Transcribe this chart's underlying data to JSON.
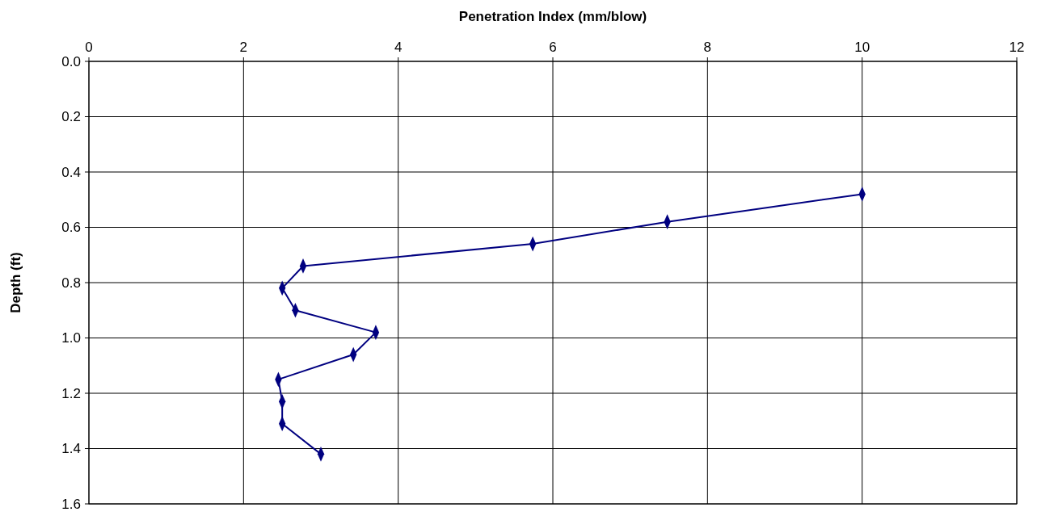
{
  "chart_data": {
    "type": "line",
    "xlabel": "Penetration Index (mm/blow)",
    "ylabel": "Depth (ft)",
    "x": [
      10,
      7.48,
      5.74,
      2.77,
      2.5,
      2.67,
      3.71,
      3.42,
      2.45,
      2.5,
      2.5,
      3.0
    ],
    "series": [
      {
        "color": "#000080",
        "values": [
          0.48,
          0.58,
          0.66,
          0.74,
          0.82,
          0.9,
          0.98,
          1.06,
          1.15,
          1.23,
          1.31,
          1.42
        ]
      }
    ],
    "xlim": [
      0,
      12
    ],
    "xticks": [
      0,
      2,
      4,
      6,
      8,
      10,
      12
    ],
    "ylim": [
      1.6,
      0
    ],
    "yticks": [
      {
        "value": 0,
        "label": "0.0"
      },
      {
        "value": 0.2,
        "label": "0.2"
      },
      {
        "value": 0.4,
        "label": "0.4"
      },
      {
        "value": 0.6,
        "label": "0.6"
      },
      {
        "value": 0.8,
        "label": "0.8"
      },
      {
        "value": 1,
        "label": "1.0"
      },
      {
        "value": 1.2,
        "label": "1.2"
      },
      {
        "value": 1.4,
        "label": "1.4"
      },
      {
        "value": 1.6,
        "label": "1.6"
      }
    ],
    "grid": true,
    "marker": "diamond",
    "line_style": "solid"
  }
}
